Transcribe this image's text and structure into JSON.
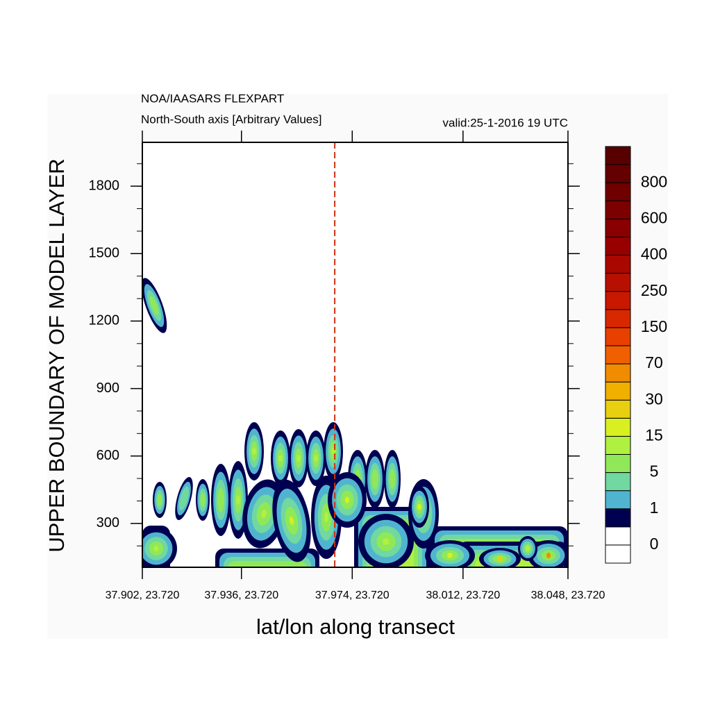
{
  "chart_data": {
    "type": "contour",
    "title": "NOA/IAASARS FLEXPART",
    "subtitle": "North-South axis [Arbitrary Values]",
    "valid_time": "valid:25-1-2016 19 UTC",
    "x_label": "lat/lon along transect",
    "y_label": "UPPER BOUNDARY OF MODEL LAYER",
    "xlim": [
      37.902,
      38.048
    ],
    "xticks": [
      {
        "value": 37.902,
        "label": "37.902, 23.720"
      },
      {
        "value": 37.936,
        "label": "37.936, 23.720"
      },
      {
        "value": 37.974,
        "label": "37.974, 23.720"
      },
      {
        "value": 38.012,
        "label": "38.012, 23.720"
      },
      {
        "value": 38.048,
        "label": "38.048, 23.720"
      }
    ],
    "ylim": [
      105,
      1995
    ],
    "yticks": [
      300,
      600,
      900,
      1200,
      1500,
      1800
    ],
    "transect_marker": 37.968,
    "marker_color": "#d03010",
    "colorbar": {
      "levels": [
        0,
        1,
        5,
        15,
        30,
        70,
        150,
        250,
        400,
        600,
        800
      ],
      "colors": [
        "#ffffff",
        "#ffffff",
        "#000050",
        "#50b4d0",
        "#70d8a0",
        "#90e858",
        "#b0f040",
        "#d8f020",
        "#e8d010",
        "#f0b000",
        "#f08c00",
        "#f06000",
        "#e84000",
        "#d82800",
        "#c81800",
        "#b81000",
        "#a80800",
        "#980000",
        "#880000",
        "#7c0000",
        "#700000",
        "#640000",
        "#580000"
      ]
    }
  }
}
